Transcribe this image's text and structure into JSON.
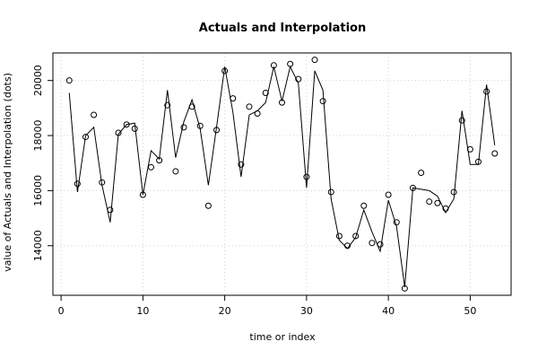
{
  "chart_data": {
    "type": "line",
    "title": "Actuals and Interpolation",
    "xlabel": "time or index",
    "ylabel": "value of Actuals and Interpolation (dots)",
    "xlim": [
      -1,
      55
    ],
    "ylim": [
      12200,
      21000
    ],
    "x_ticks": [
      0,
      10,
      20,
      30,
      40,
      50
    ],
    "y_ticks": [
      14000,
      16000,
      18000,
      20000
    ],
    "grid": true,
    "series": [
      {
        "style": "points",
        "x": [
          1,
          2,
          3,
          4,
          5,
          6,
          7,
          8,
          9,
          10,
          11,
          12,
          13,
          14,
          15,
          16,
          17,
          18,
          19,
          20,
          21,
          22,
          23,
          24,
          25,
          26,
          27,
          28,
          29,
          30,
          31,
          32,
          33,
          34,
          35,
          36,
          37,
          38,
          39,
          40,
          41,
          42,
          43,
          44,
          45,
          46,
          47,
          48,
          49,
          50,
          51,
          52,
          53
        ],
        "y": [
          20000,
          16250,
          17950,
          18750,
          16300,
          15300,
          18100,
          18400,
          18250,
          15850,
          16850,
          17100,
          19100,
          16700,
          18300,
          19050,
          18350,
          15450,
          18200,
          20350,
          19350,
          16950,
          19050,
          18800,
          19550,
          20550,
          19200,
          20600,
          20050,
          16500,
          20750,
          19250,
          15950,
          14350,
          14000,
          14350,
          15450,
          14100,
          14050,
          15850,
          14850,
          12450,
          16100,
          16650,
          15600,
          15550,
          15350,
          15950,
          18550,
          17500,
          17050,
          19600,
          17350
        ]
      },
      {
        "style": "line",
        "x": [
          1,
          2,
          3,
          4,
          5,
          6,
          7,
          8,
          9,
          10,
          11,
          12,
          13,
          14,
          15,
          16,
          17,
          18,
          19,
          20,
          21,
          22,
          23,
          24,
          25,
          26,
          27,
          28,
          29,
          30,
          31,
          32,
          33,
          34,
          35,
          36,
          37,
          38,
          39,
          40,
          41,
          42,
          43,
          44,
          45,
          46,
          47,
          48,
          49,
          50,
          51,
          52,
          53
        ],
        "y": [
          19550,
          15950,
          18000,
          18300,
          16200,
          14850,
          18050,
          18400,
          18450,
          15850,
          17450,
          17150,
          19650,
          17200,
          18500,
          19300,
          18250,
          16200,
          18300,
          20500,
          18850,
          16500,
          18750,
          18900,
          19200,
          20500,
          19250,
          20500,
          19900,
          16100,
          20350,
          19650,
          15700,
          14200,
          13900,
          14300,
          15300,
          14500,
          13800,
          15650,
          14700,
          12500,
          16100,
          16050,
          16000,
          15800,
          15200,
          15700,
          18900,
          16950,
          16950,
          19850,
          17650
        ]
      }
    ]
  }
}
